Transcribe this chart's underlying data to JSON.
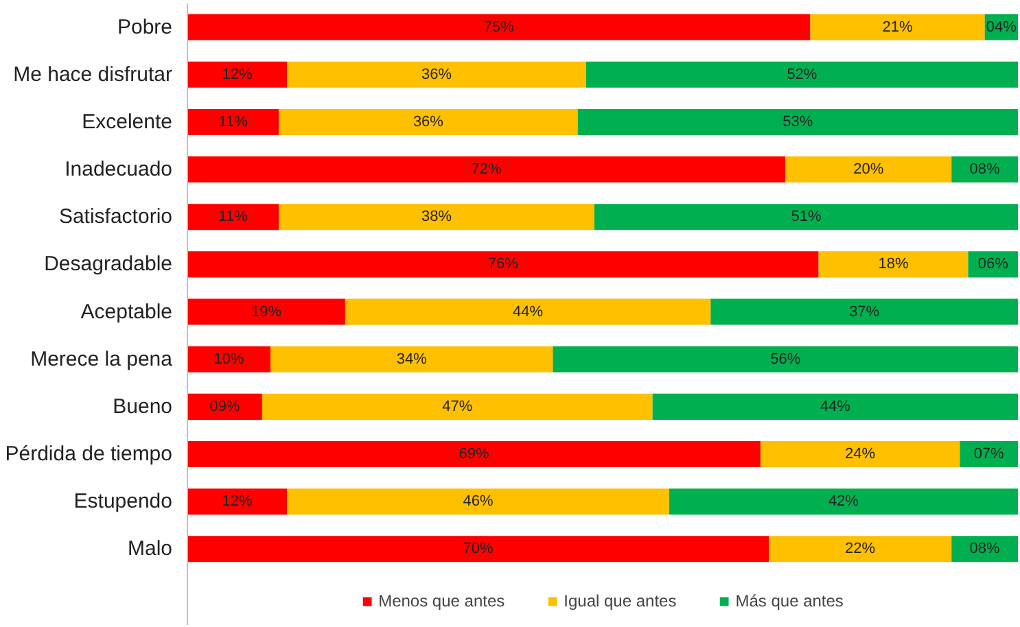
{
  "chart_data": {
    "type": "bar",
    "orientation": "horizontal",
    "stacked": true,
    "legend": "bottom",
    "grid": false,
    "tick_labels": "y",
    "xlim": [
      0,
      100
    ],
    "categories": [
      "Pobre",
      "Me hace disfrutar",
      "Excelente",
      "Inadecuado",
      "Satisfactorio",
      "Desagradable",
      "Aceptable",
      "Merece la pena",
      "Bueno",
      "Pérdida de tiempo",
      "Estupendo",
      "Malo"
    ],
    "series": [
      {
        "name": "Menos que antes",
        "color": "#ff0000",
        "values": [
          75,
          12,
          11,
          72,
          11,
          76,
          19,
          10,
          9,
          69,
          12,
          70
        ],
        "value_labels": [
          "75%",
          "12%",
          "11%",
          "72%",
          "11%",
          "76%",
          "19%",
          "10%",
          "09%",
          "69%",
          "12%",
          "70%"
        ]
      },
      {
        "name": "Igual que antes",
        "color": "#ffc000",
        "values": [
          21,
          36,
          36,
          20,
          38,
          18,
          44,
          34,
          47,
          24,
          46,
          22
        ],
        "value_labels": [
          "21%",
          "36%",
          "36%",
          "20%",
          "38%",
          "18%",
          "44%",
          "34%",
          "47%",
          "24%",
          "46%",
          "22%"
        ]
      },
      {
        "name": "Más que antes",
        "color": "#00b050",
        "values": [
          4,
          52,
          53,
          8,
          51,
          6,
          37,
          56,
          44,
          7,
          42,
          8
        ],
        "value_labels": [
          "04%",
          "52%",
          "53%",
          "08%",
          "51%",
          "06%",
          "37%",
          "56%",
          "44%",
          "07%",
          "42%",
          "08%"
        ]
      }
    ]
  }
}
